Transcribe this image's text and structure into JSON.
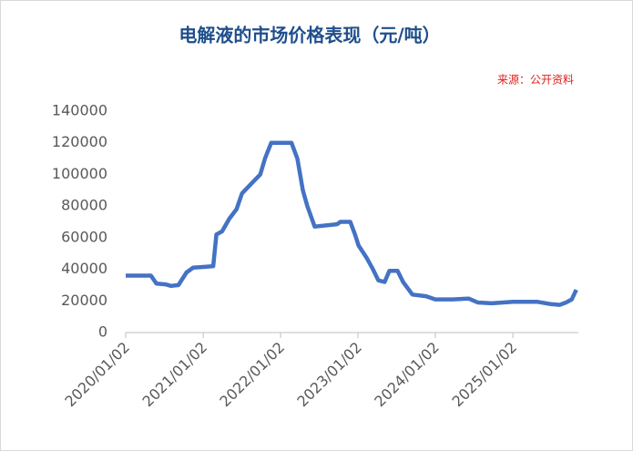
{
  "chart_data": {
    "type": "line",
    "title": "电解液的市场价格表现（元/吨）",
    "source": "来源：公开资料",
    "color": "#4472c4",
    "x": [
      "2020/01/02",
      "2020/04/30",
      "2020/05/26",
      "2020/07/08",
      "2020/08/03",
      "2020/09/07",
      "2020/10/15",
      "2020/11/15",
      "2021/01/02",
      "2021/02/18",
      "2021/03/05",
      "2021/04/01",
      "2021/05/05",
      "2021/06/08",
      "2021/07/04",
      "2021/08/16",
      "2021/09/28",
      "2021/10/20",
      "2021/11/19",
      "2022/02/22",
      "2022/03/22",
      "2022/04/17",
      "2022/05/08",
      "2022/06/12",
      "2022/09/25",
      "2022/10/11",
      "2022/11/27",
      "2022/12/19",
      "2023/01/05",
      "2023/02/13",
      "2023/03/14",
      "2023/04/08",
      "2023/05/08",
      "2023/05/30",
      "2023/07/08",
      "2023/08/03",
      "2023/08/25",
      "2023/09/16",
      "2023/11/19",
      "2024/01/02",
      "2024/03/23",
      "2024/06/08",
      "2024/07/20",
      "2024/09/24",
      "2025/01/02",
      "2025/04/26",
      "2025/06/30",
      "2025/08/11",
      "2025/09/10",
      "2025/10/07",
      "2025/10/28"
    ],
    "values": [
      36000,
      36000,
      31000,
      30500,
      29500,
      30000,
      38000,
      41000,
      41500,
      42000,
      62000,
      64000,
      72000,
      78000,
      88000,
      94000,
      100000,
      110000,
      120000,
      120000,
      110000,
      90000,
      80000,
      67000,
      68500,
      70000,
      70000,
      62000,
      55000,
      47000,
      40000,
      33000,
      32000,
      39000,
      39000,
      32000,
      28000,
      24000,
      23000,
      21000,
      21000,
      21500,
      19000,
      18500,
      19500,
      19500,
      18000,
      17500,
      19000,
      21000,
      27000
    ],
    "xlim": [
      "2020/01/02",
      "2025/11/07"
    ],
    "xticks": [
      "2020/01/02",
      "2021/01/02",
      "2022/01/02",
      "2023/01/02",
      "2024/01/02",
      "2025/01/02"
    ],
    "ylim": [
      0,
      140000
    ],
    "yticks": [
      0,
      20000,
      40000,
      60000,
      80000,
      100000,
      120000,
      140000
    ]
  }
}
